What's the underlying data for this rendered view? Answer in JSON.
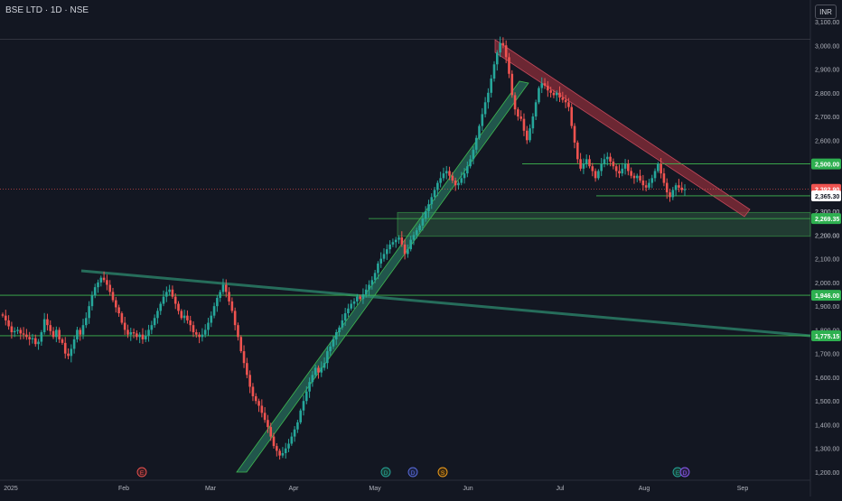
{
  "header": {
    "title": "BSE LTD · 1D · NSE",
    "currency": "INR"
  },
  "colors": {
    "background": "#131722",
    "up": "#26a69a",
    "down": "#ef5350",
    "grid": "#1e222d",
    "axis_text": "#b2b5be",
    "trendline": "#2e8b6f",
    "support_line": "#3fb950",
    "price_label_green": "#2eb050",
    "resistance_band": "#8b2d3a",
    "support_band": "#2e5a3f"
  },
  "icons": [
    "earnings-icon",
    "dividend-icon",
    "split-icon"
  ],
  "chart_data": {
    "type": "candlestick",
    "y_axis": {
      "ticks": [
        "1,200.00",
        "1,300.00",
        "1,400.00",
        "1,500.00",
        "1,600.00",
        "1,700.00",
        "1,800.00",
        "1,900.00",
        "2,000.00",
        "2,100.00",
        "2,200.00",
        "2,300.00",
        "2,400.00",
        "2,500.00",
        "2,600.00",
        "2,700.00",
        "2,800.00",
        "2,900.00",
        "3,000.00",
        "3,100.00"
      ],
      "range": [
        1200,
        3200
      ]
    },
    "x_axis": {
      "ticks": [
        "2025",
        "Feb",
        "Mar",
        "Apr",
        "May",
        "Jun",
        "Jul",
        "Aug",
        "Sep"
      ]
    },
    "price_labels": [
      {
        "text": "2,500.00",
        "kind": "green",
        "value": 2500
      },
      {
        "text": "2,392.90",
        "kind": "red",
        "value": 2392.9
      },
      {
        "text": "2,365.30",
        "kind": "white",
        "value": 2365.3
      },
      {
        "text": "2,300.00",
        "kind": "plain",
        "value": 2300
      },
      {
        "text": "2,269.35",
        "kind": "green",
        "value": 2269.35
      },
      {
        "text": "2,200.00",
        "kind": "plain",
        "value": 2200
      },
      {
        "text": "1,946.00",
        "kind": "green",
        "value": 1946
      },
      {
        "text": "1,775.15",
        "kind": "green",
        "value": 1775.15
      }
    ],
    "horizontal_levels": [
      2500,
      2365.3,
      2269.35,
      1946,
      1775.15
    ],
    "close_line": 2392.9,
    "support_zone": [
      2195,
      2295
    ],
    "event_markers": [
      "E",
      "D",
      "S",
      "E",
      "D"
    ],
    "closes": [
      1860,
      1840,
      1815,
      1790,
      1795,
      1800,
      1785,
      1780,
      1770,
      1760,
      1765,
      1740,
      1750,
      1790,
      1845,
      1820,
      1795,
      1770,
      1800,
      1760,
      1745,
      1700,
      1690,
      1720,
      1760,
      1800,
      1780,
      1820,
      1850,
      1900,
      1945,
      1980,
      2000,
      2020,
      2010,
      1990,
      1960,
      1925,
      1895,
      1870,
      1830,
      1800,
      1780,
      1790,
      1785,
      1770,
      1780,
      1760,
      1775,
      1800,
      1820,
      1850,
      1880,
      1910,
      1940,
      1960,
      1970,
      1940,
      1910,
      1880,
      1850,
      1860,
      1840,
      1820,
      1790,
      1780,
      1770,
      1780,
      1800,
      1830,
      1860,
      1900,
      1935,
      1960,
      1990,
      1960,
      1920,
      1880,
      1820,
      1770,
      1710,
      1660,
      1610,
      1560,
      1520,
      1500,
      1480,
      1450,
      1420,
      1390,
      1350,
      1310,
      1290,
      1270,
      1280,
      1300,
      1320,
      1350,
      1380,
      1410,
      1460,
      1500,
      1540,
      1580,
      1610,
      1640,
      1620,
      1640,
      1660,
      1710,
      1730,
      1760,
      1790,
      1810,
      1840,
      1870,
      1890,
      1910,
      1920,
      1940,
      1930,
      1950,
      1970,
      1990,
      2010,
      2040,
      2080,
      2100,
      2120,
      2140,
      2160,
      2170,
      2180,
      2190,
      2160,
      2120,
      2140,
      2180,
      2200,
      2220,
      2240,
      2270,
      2300,
      2330,
      2360,
      2390,
      2420,
      2440,
      2460,
      2470,
      2450,
      2430,
      2410,
      2420,
      2440,
      2460,
      2490,
      2520,
      2560,
      2610,
      2660,
      2710,
      2760,
      2800,
      2860,
      2920,
      2970,
      3010,
      3000,
      2950,
      2880,
      2790,
      2730,
      2700,
      2690,
      2640,
      2600,
      2650,
      2700,
      2760,
      2820,
      2840,
      2830,
      2810,
      2800,
      2790,
      2800,
      2780,
      2770,
      2760,
      2740,
      2660,
      2590,
      2520,
      2480,
      2500,
      2520,
      2490,
      2470,
      2440,
      2470,
      2500,
      2520,
      2530,
      2510,
      2490,
      2470,
      2460,
      2480,
      2500,
      2470,
      2450,
      2440,
      2450,
      2430,
      2410,
      2400,
      2420,
      2440,
      2470,
      2500,
      2460,
      2420,
      2380,
      2360,
      2390,
      2410,
      2400,
      2390,
      2393
    ]
  }
}
